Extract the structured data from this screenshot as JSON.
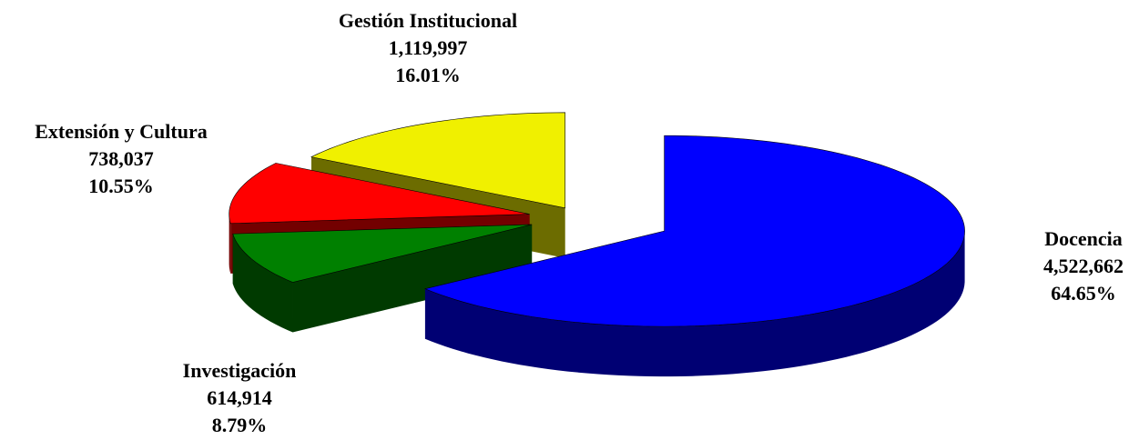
{
  "chart_data": {
    "type": "pie",
    "categories": [
      "Docencia",
      "Investigación",
      "Extensión y Cultura",
      "Gestión Institucional"
    ],
    "values": [
      4522662,
      614914,
      738037,
      1119997
    ],
    "value_labels": [
      "4,522,662",
      "614,914",
      "738,037",
      "1,119,997"
    ],
    "percent_values": [
      64.65,
      8.79,
      10.55,
      16.01
    ],
    "percent_labels": [
      "64.65%",
      "8.79%",
      "10.55%",
      "16.01%"
    ],
    "colors": [
      "#0000ff",
      "#008000",
      "#ff0000",
      "#f0f000"
    ]
  }
}
